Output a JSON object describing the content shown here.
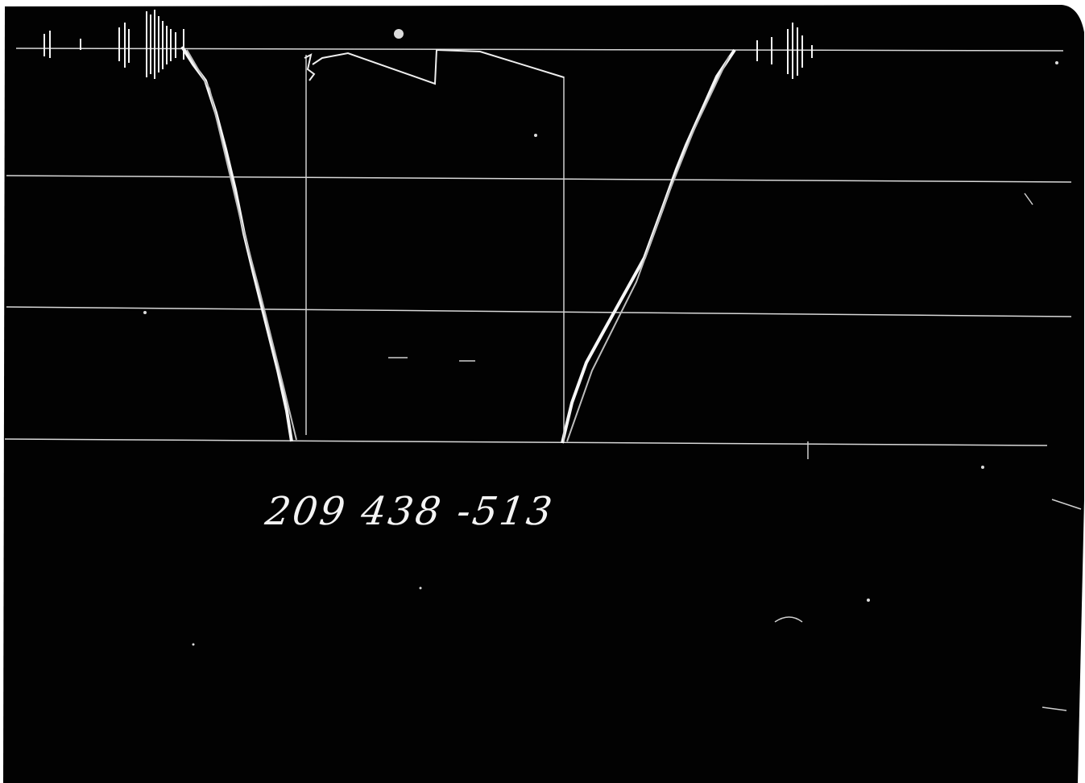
{
  "photo": {
    "handwritten_label": "209 438 -513",
    "colors": {
      "background": "#020202",
      "trace": "#f2f2f2",
      "paper_edge": "#ffffff"
    }
  }
}
